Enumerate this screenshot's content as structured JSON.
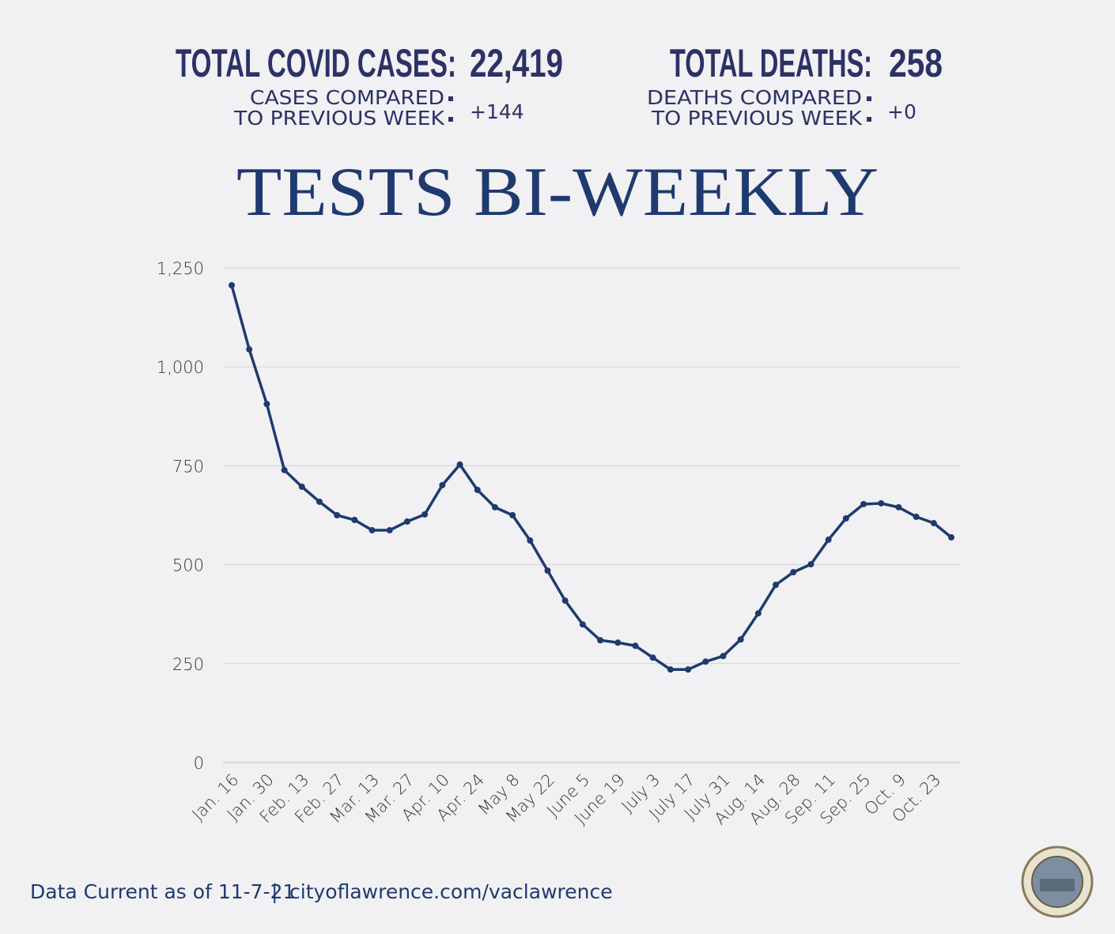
{
  "header": {
    "cases_label": "TOTAL COVID CASES:",
    "cases_value": "22,419",
    "cases_compare_1": "CASES COMPARED",
    "cases_compare_2": "TO PREVIOUS WEEK",
    "cases_change": "+144",
    "deaths_label": "TOTAL DEATHS:",
    "deaths_value": "258",
    "deaths_compare_1": "DEATHS COMPARED",
    "deaths_compare_2": "TO PREVIOUS WEEK",
    "deaths_change": "+0"
  },
  "footer": {
    "date": "Data Current as of 11-7-21",
    "separator": "|",
    "url": "cityoflawrence.com/vaclawrence"
  },
  "chart_data": {
    "type": "line",
    "title": "TESTS BI-WEEKLY",
    "categories": [
      "Jan. 16",
      null,
      "Jan. 30",
      null,
      "Feb. 13",
      null,
      "Feb. 27",
      null,
      "Mar. 13",
      null,
      "Mar. 27",
      null,
      "Apr. 10",
      null,
      "Apr. 24",
      null,
      "May 8",
      null,
      "May 22",
      null,
      "June 5",
      null,
      "June 19",
      null,
      "July 3",
      null,
      "July 17",
      null,
      "July 31",
      null,
      "Aug. 14",
      null,
      "Aug. 28",
      null,
      "Sep. 11",
      null,
      "Sep. 25",
      null,
      "Oct. 9",
      null,
      "Oct. 23",
      null
    ],
    "values": [
      1206,
      1044,
      906,
      739,
      697,
      659,
      625,
      613,
      587,
      587,
      609,
      627,
      701,
      753,
      689,
      645,
      625,
      561,
      485,
      409,
      349,
      309,
      303,
      295,
      265,
      235,
      235,
      255,
      269,
      311,
      377,
      449,
      481,
      501,
      563,
      617,
      653,
      655,
      645,
      621,
      605,
      569
    ],
    "color": "#1f3a6e",
    "ylim": [
      0,
      1250
    ],
    "yticks": [
      0,
      250,
      500,
      750,
      {
        "value": 1000,
        "label": "1,000"
      },
      {
        "value": 1250,
        "label": "1,250"
      }
    ],
    "grid": true
  }
}
